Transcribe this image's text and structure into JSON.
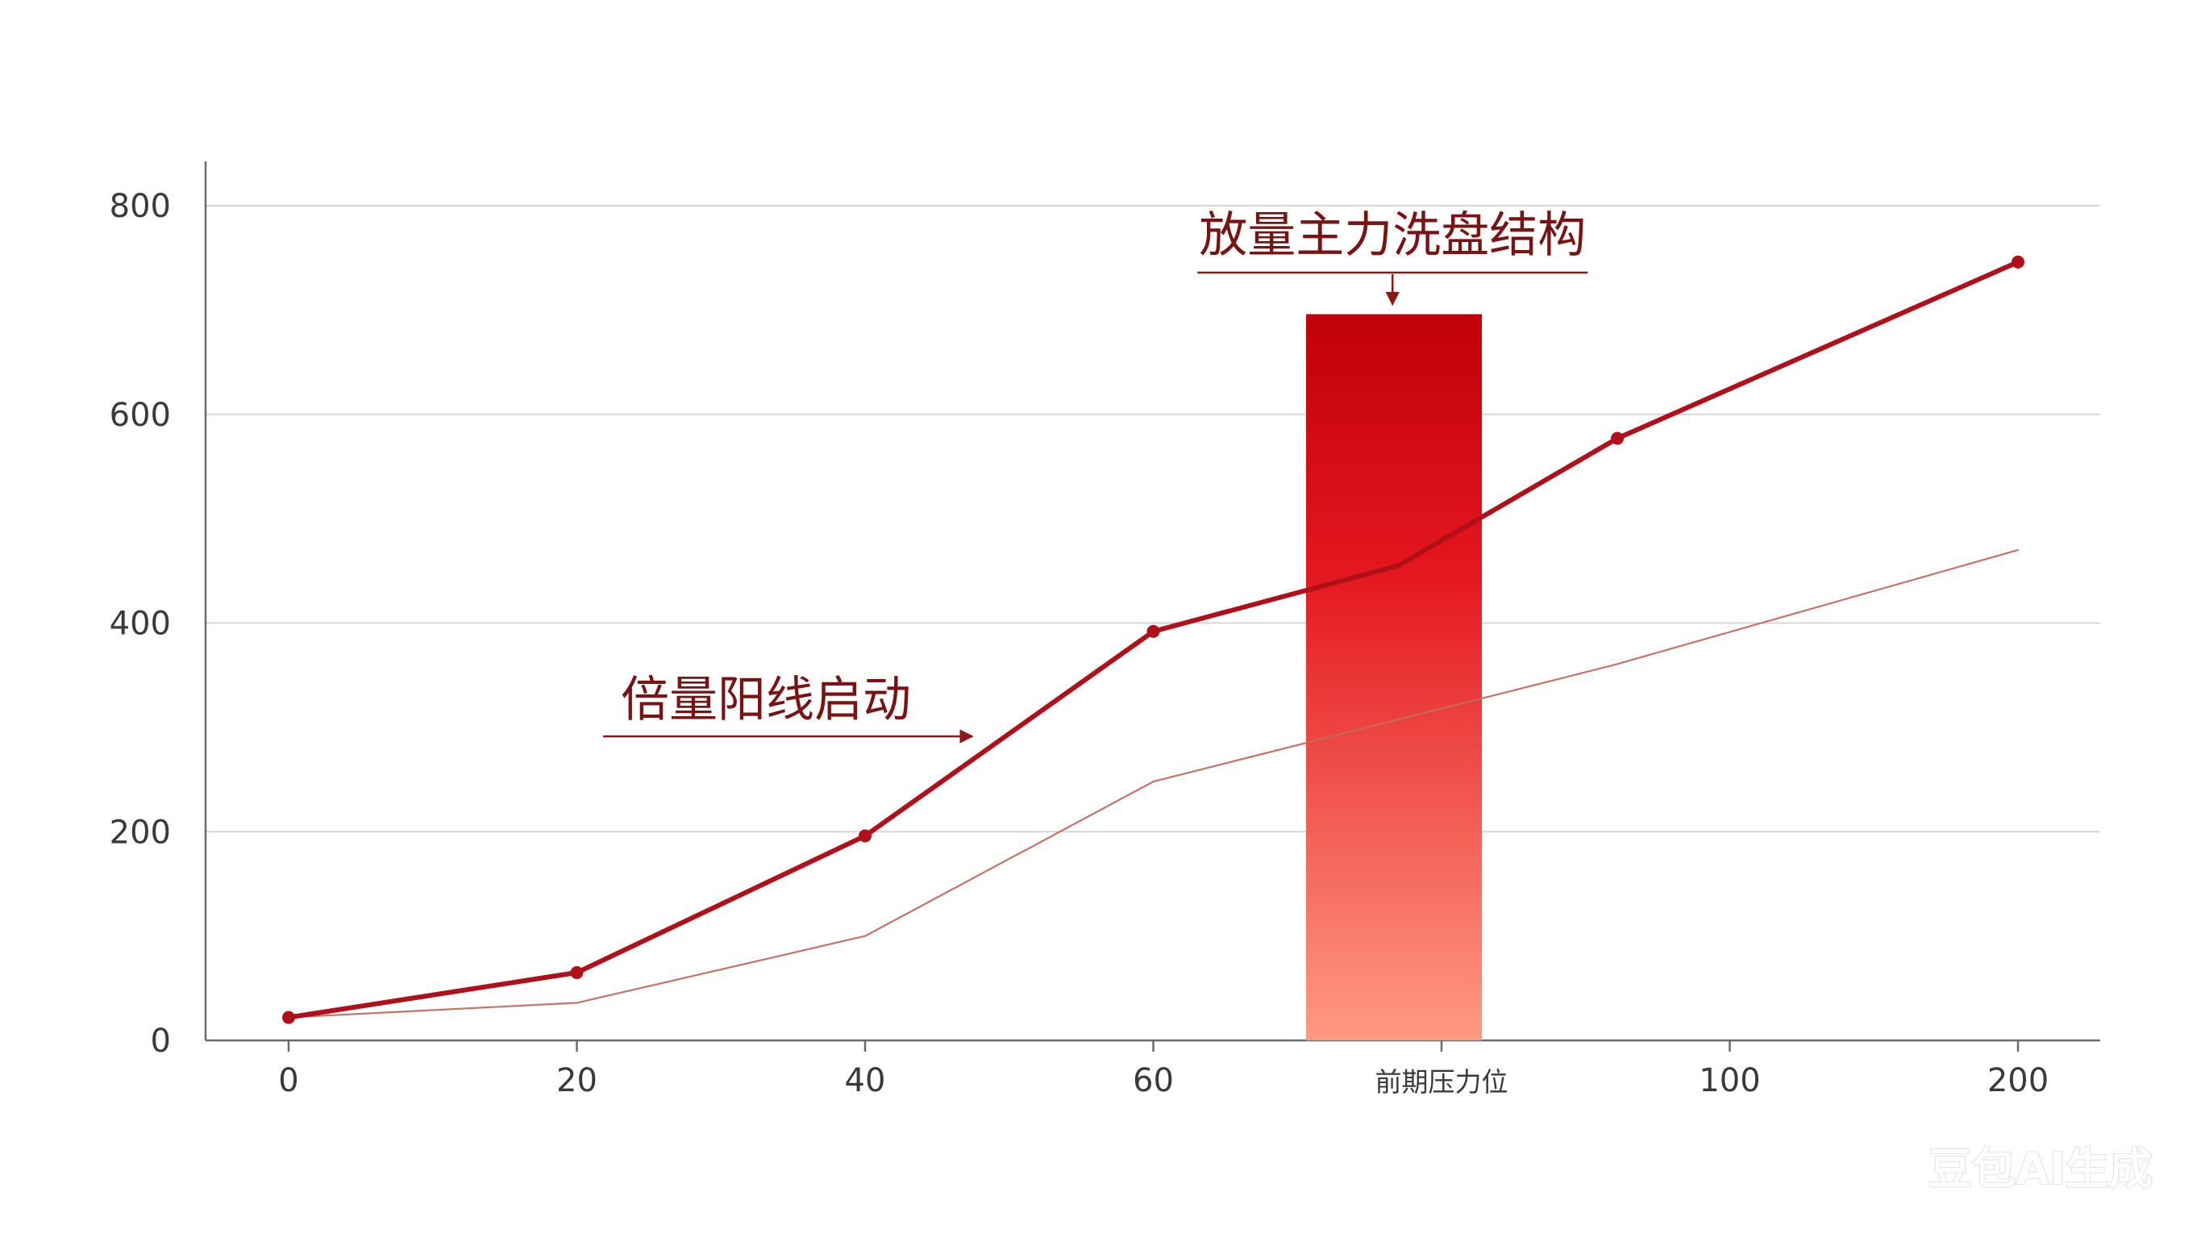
{
  "chart_data": {
    "type": "line",
    "x_ticks": [
      "0",
      "20",
      "40",
      "60",
      "前期压力位",
      "100",
      "200"
    ],
    "ylim": [
      0,
      800
    ],
    "y_ticks": [
      0,
      200,
      400,
      600,
      800
    ],
    "grid": true,
    "series": [
      {
        "color": "#b0101a",
        "points": [
          {
            "x": 0,
            "y": 22
          },
          {
            "x": 1,
            "y": 65
          },
          {
            "x": 2,
            "y": 196
          },
          {
            "x": 3,
            "y": 392
          },
          {
            "x": 3.85,
            "y": 455
          },
          {
            "x": 4.61,
            "y": 577
          },
          {
            "x": 6,
            "y": 746
          }
        ]
      },
      {
        "color": "#c26b5e",
        "points": [
          {
            "x": 0,
            "y": 22
          },
          {
            "x": 1,
            "y": 36
          },
          {
            "x": 2,
            "y": 100
          },
          {
            "x": 3,
            "y": 248
          },
          {
            "x": 4.6,
            "y": 360
          },
          {
            "x": 6,
            "y": 470
          }
        ]
      }
    ],
    "highlight_bar": {
      "x_from": 3.53,
      "x_to": 4.14,
      "y_top": 696,
      "color_top": "#c0000a",
      "color_bottom": "#ff9a82"
    },
    "annotations": [
      {
        "text": "放量主力洗盘结构",
        "arrow": "down",
        "target_x": 3.83,
        "target_y": 696
      },
      {
        "text": "倍量阳线启动",
        "arrow": "right",
        "target_x": 2.4,
        "target_y": 290
      }
    ]
  },
  "watermark": "豆包AI生成"
}
